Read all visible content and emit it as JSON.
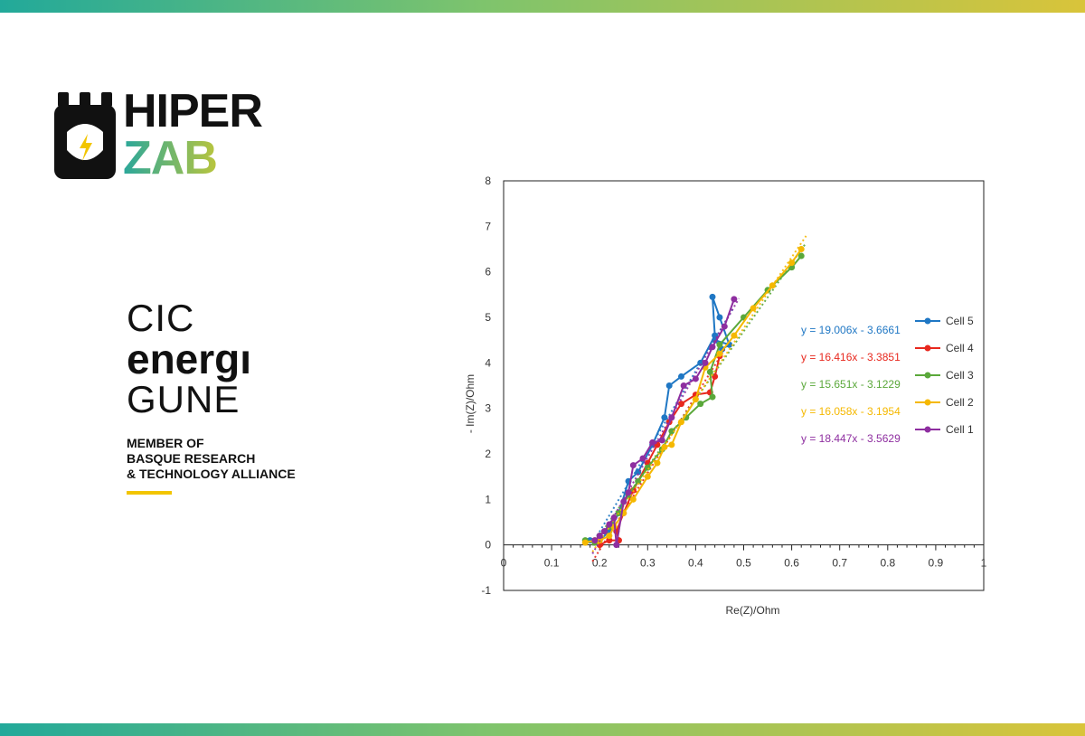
{
  "brand": {
    "hiper_line1": "HIPER",
    "hiper_line2": "ZAB",
    "cic_line1": "CIC",
    "cic_line2": "energı",
    "cic_line3": "GUNE",
    "member_line1": "MEMBER OF",
    "member_line2": "BASQUE RESEARCH",
    "member_line3": "& TECHNOLOGY ALLIANCE",
    "colors": {
      "accent_teal": "#22a99a",
      "accent_green": "#7fc46c",
      "accent_yellow": "#d9c43a",
      "cic_bar": "#f2c500"
    }
  },
  "chart_data": {
    "type": "scatter",
    "title": "",
    "xlabel": "Re(Z)/Ohm",
    "ylabel": "- Im(Z)/Ohm",
    "xlim": [
      0,
      1
    ],
    "ylim": [
      -1,
      8
    ],
    "x_ticks": [
      "0",
      "0.1",
      "0.2",
      "0.3",
      "0.4",
      "0.5",
      "0.6",
      "0.7",
      "0.8",
      "0.9",
      "1"
    ],
    "y_ticks": [
      "-1",
      "0",
      "1",
      "2",
      "3",
      "4",
      "5",
      "6",
      "7",
      "8"
    ],
    "grid": false,
    "legend_position": "right",
    "series": [
      {
        "name": "Cell 5",
        "color": "#1f77c4",
        "equation": "y = 19.006x  - 3.6661",
        "x": [
          0.18,
          0.2,
          0.22,
          0.24,
          0.26,
          0.28,
          0.31,
          0.335,
          0.345,
          0.37,
          0.41,
          0.44,
          0.435,
          0.45,
          0.47,
          0.44,
          0.455,
          0.47
        ],
        "y": [
          0.1,
          0.1,
          0.3,
          0.7,
          1.4,
          1.6,
          2.2,
          2.8,
          3.5,
          3.7,
          4.0,
          4.6,
          5.45,
          5.0,
          4.4,
          4.5,
          4.3,
          4.4
        ]
      },
      {
        "name": "Cell 4",
        "color": "#e8281e",
        "equation": "y = 16.416x  - 3.3851",
        "x": [
          0.2,
          0.22,
          0.24,
          0.235,
          0.25,
          0.27,
          0.3,
          0.32,
          0.345,
          0.37,
          0.4,
          0.43,
          0.44,
          0.45
        ],
        "y": [
          0.0,
          0.1,
          0.1,
          0.3,
          0.7,
          1.2,
          1.8,
          2.2,
          2.7,
          3.1,
          3.3,
          3.35,
          3.7,
          4.15
        ]
      },
      {
        "name": "Cell 3",
        "color": "#5aa83a",
        "equation": "y = 15.651x  - 3.1229",
        "x": [
          0.17,
          0.19,
          0.2,
          0.21,
          0.22,
          0.24,
          0.26,
          0.28,
          0.3,
          0.33,
          0.35,
          0.38,
          0.41,
          0.435,
          0.43,
          0.45,
          0.5,
          0.55,
          0.6,
          0.62
        ],
        "y": [
          0.1,
          0.05,
          0.2,
          0.3,
          0.4,
          0.7,
          1.1,
          1.4,
          1.7,
          2.1,
          2.5,
          2.8,
          3.1,
          3.25,
          3.8,
          4.4,
          5.0,
          5.6,
          6.1,
          6.35
        ]
      },
      {
        "name": "Cell 2",
        "color": "#f5b800",
        "equation": "y = 16.058x  - 3.1954",
        "x": [
          0.17,
          0.19,
          0.2,
          0.22,
          0.23,
          0.25,
          0.27,
          0.3,
          0.32,
          0.335,
          0.35,
          0.37,
          0.4,
          0.42,
          0.45,
          0.48,
          0.52,
          0.56,
          0.6,
          0.62
        ],
        "y": [
          0.05,
          0.1,
          0.1,
          0.2,
          0.4,
          0.7,
          1.0,
          1.5,
          1.8,
          2.15,
          2.2,
          2.7,
          3.2,
          3.9,
          4.2,
          4.6,
          5.2,
          5.7,
          6.2,
          6.5
        ]
      },
      {
        "name": "Cell 1",
        "color": "#8e2ea0",
        "equation": "y = 18.447x  - 3.5629",
        "x": [
          0.19,
          0.2,
          0.21,
          0.22,
          0.23,
          0.235,
          0.25,
          0.26,
          0.27,
          0.29,
          0.31,
          0.33,
          0.35,
          0.375,
          0.4,
          0.42,
          0.435,
          0.46,
          0.48
        ],
        "y": [
          0.1,
          0.2,
          0.3,
          0.45,
          0.6,
          0.0,
          0.95,
          1.15,
          1.75,
          1.9,
          2.25,
          2.3,
          2.8,
          3.5,
          3.65,
          4.0,
          4.35,
          4.8,
          5.4
        ]
      }
    ]
  }
}
